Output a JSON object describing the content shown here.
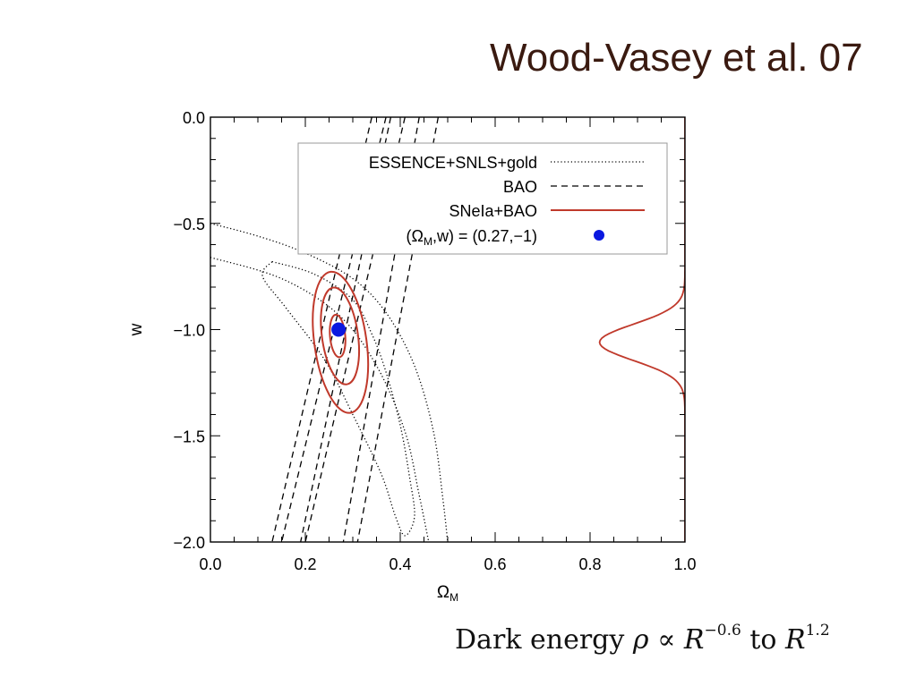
{
  "title": "Wood-Vasey et al. 07",
  "caption": {
    "prefix": "Dark energy",
    "rho": "ρ",
    "propto": "∝",
    "R": "R",
    "exp1": "−0.6",
    "to": "to",
    "exp2": "1.2"
  },
  "colors": {
    "snls": "#000000",
    "bao": "#000000",
    "combined": "#c0392b",
    "point": "#0a18e0"
  },
  "chart_data": {
    "type": "line",
    "xlabel": "Ω",
    "xlabel_sub": "M",
    "ylabel": "w",
    "xlim": [
      0.0,
      1.0
    ],
    "ylim": [
      -2.0,
      0.0
    ],
    "xticks": [
      {
        "v": 0.0,
        "label": "0.0"
      },
      {
        "v": 0.2,
        "label": "0.2"
      },
      {
        "v": 0.4,
        "label": "0.4"
      },
      {
        "v": 0.6,
        "label": "0.6"
      },
      {
        "v": 0.8,
        "label": "0.8"
      },
      {
        "v": 1.0,
        "label": "1.0"
      }
    ],
    "yticks": [
      {
        "v": 0.0,
        "label": "0.0"
      },
      {
        "v": -0.5,
        "label": "−0.5"
      },
      {
        "v": -1.0,
        "label": "−1.0"
      },
      {
        "v": -1.5,
        "label": "−1.5"
      },
      {
        "v": -2.0,
        "label": "−2.0"
      }
    ],
    "legend": {
      "position": "top-right",
      "entries": [
        {
          "label": "ESSENCE+SNLS+gold",
          "style": "dotted"
        },
        {
          "label": "BAO",
          "style": "dashed"
        },
        {
          "label": "SNeIa+BAO",
          "style": "solid"
        },
        {
          "label_pre": "(Ω",
          "label_sub": "M",
          "label_post": ",w) = (0.27,−1)",
          "style": "point"
        }
      ]
    },
    "series": [
      {
        "style": "dotted",
        "contours": [
          [
            [
              0.0,
              -0.5
            ],
            [
              0.1,
              -0.56
            ],
            [
              0.2,
              -0.64
            ],
            [
              0.3,
              -0.76
            ],
            [
              0.37,
              -0.92
            ],
            [
              0.43,
              -1.17
            ],
            [
              0.47,
              -1.48
            ],
            [
              0.49,
              -1.8
            ],
            [
              0.5,
              -2.0
            ]
          ],
          [
            [
              0.0,
              -0.66
            ],
            [
              0.15,
              -0.76
            ],
            [
              0.27,
              -0.93
            ],
            [
              0.35,
              -1.17
            ],
            [
              0.41,
              -1.48
            ],
            [
              0.44,
              -1.78
            ],
            [
              0.46,
              -2.0
            ]
          ],
          [
            [
              0.13,
              -0.68
            ],
            [
              0.22,
              -0.74
            ],
            [
              0.3,
              -0.86
            ],
            [
              0.34,
              -1.02
            ],
            [
              0.37,
              -1.2
            ],
            [
              0.4,
              -1.45
            ],
            [
              0.42,
              -1.7
            ],
            [
              0.43,
              -1.88
            ],
            [
              0.41,
              -1.97
            ],
            [
              0.39,
              -1.88
            ],
            [
              0.36,
              -1.68
            ],
            [
              0.3,
              -1.4
            ],
            [
              0.24,
              -1.14
            ],
            [
              0.16,
              -0.9
            ],
            [
              0.11,
              -0.75
            ],
            [
              0.13,
              -0.68
            ]
          ]
        ]
      },
      {
        "style": "dashed",
        "lines": [
          [
            [
              0.34,
              0.0
            ],
            [
              0.13,
              -2.0
            ]
          ],
          [
            [
              0.37,
              0.0
            ],
            [
              0.15,
              -2.0
            ]
          ],
          [
            [
              0.38,
              0.0
            ],
            [
              0.19,
              -2.0
            ]
          ],
          [
            [
              0.41,
              0.0
            ],
            [
              0.2,
              -2.0
            ]
          ],
          [
            [
              0.44,
              0.0
            ],
            [
              0.28,
              -2.0
            ]
          ],
          [
            [
              0.48,
              0.0
            ],
            [
              0.31,
              -2.0
            ]
          ]
        ]
      },
      {
        "style": "solid",
        "ellipses": [
          {
            "cx": 0.274,
            "cy": -1.06,
            "rx": 0.055,
            "ry": 0.335,
            "tilt_deg": -8
          },
          {
            "cx": 0.273,
            "cy": -1.03,
            "rx": 0.038,
            "ry": 0.23,
            "tilt_deg": -8
          },
          {
            "cx": 0.268,
            "cy": -1.03,
            "rx": 0.016,
            "ry": 0.1,
            "tilt_deg": -5
          }
        ],
        "marginal": {
          "mean": -1.06,
          "sigma": 0.085,
          "peak_x": 0.82
        }
      },
      {
        "style": "point",
        "point": {
          "x": 0.27,
          "y": -1.0
        }
      }
    ]
  }
}
